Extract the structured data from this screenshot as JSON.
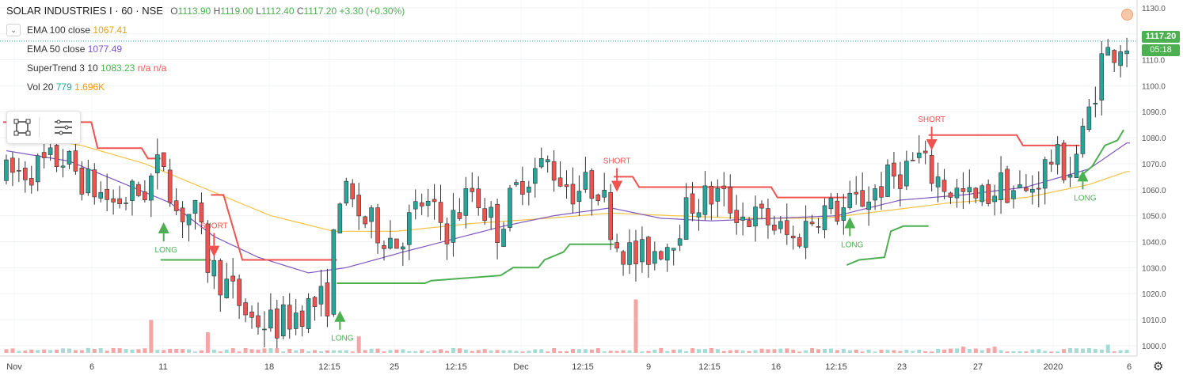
{
  "header": {
    "symbol": "SOLAR INDUSTRIES I · 60 · NSE",
    "open_label": "O",
    "open": "1113.90",
    "high_label": "H",
    "high": "1119.00",
    "low_label": "L",
    "low": "1112.40",
    "close_label": "C",
    "close": "1117.20",
    "change": "+3.30 (+0.30%)"
  },
  "indicators": [
    {
      "name": "EMA 100 close",
      "value": "1067.41",
      "value2": "",
      "value3": ""
    },
    {
      "name": "EMA 50 close",
      "value": "1077.49",
      "value2": "",
      "value3": ""
    },
    {
      "name": "SuperTrend 3 10",
      "value": "1083.23",
      "value2": "n/a",
      "value3": "n/a"
    },
    {
      "name": "Vol 20",
      "value": "779",
      "value2": "1.696K",
      "value3": ""
    }
  ],
  "price_tags": {
    "last_price": "1117.20",
    "countdown": "05:18"
  },
  "colors": {
    "up": "#26a69a",
    "down": "#ef5350",
    "ohlc_text": "#4caf50",
    "ema100": "#f5c342",
    "ema50": "#7e57c2",
    "supertrend_up": "#4caf50",
    "supertrend_down": "#ef5350",
    "vol_value": "#26a69a",
    "vol_ma": "#ff9800",
    "vol_up": "#a5dcd6",
    "vol_down": "#f4a6a5"
  },
  "icons": {
    "collapse": "chevron-down-icon",
    "toolbar_1": "crop-square-icon",
    "toolbar_2": "menu-lines-icon",
    "alert": "alert-dot-icon",
    "settings": "gear-icon"
  },
  "chart_data": {
    "type": "candlestick",
    "ylim": [
      996,
      1133
    ],
    "yticks": [
      1000,
      1010,
      1020,
      1030,
      1040,
      1050,
      1060,
      1070,
      1080,
      1090,
      1100,
      1110,
      1120,
      1130
    ],
    "x_labels": [
      "Nov",
      "6",
      "11",
      "18",
      "12:15",
      "25",
      "12:15",
      "Dec",
      "12:15",
      "9",
      "12:15",
      "16",
      "12:15",
      "23",
      "27",
      "2020",
      "6"
    ],
    "signals": [
      {
        "text": "LONG",
        "type": "buy",
        "bar": 25,
        "price": 1045
      },
      {
        "text": "SHORT",
        "type": "sell",
        "bar": 33,
        "price": 1036
      },
      {
        "text": "LONG",
        "type": "buy",
        "bar": 53,
        "price": 1011
      },
      {
        "text": "SHORT",
        "type": "sell",
        "bar": 97,
        "price": 1061
      },
      {
        "text": "LONG",
        "type": "buy",
        "bar": 134,
        "price": 1047
      },
      {
        "text": "SHORT",
        "type": "sell",
        "bar": 147,
        "price": 1077
      },
      {
        "text": "LONG",
        "type": "buy",
        "bar": 171,
        "price": 1065
      }
    ],
    "candle_keyframes": [
      [
        0,
        1065
      ],
      [
        5,
        1068
      ],
      [
        10,
        1072
      ],
      [
        14,
        1062
      ],
      [
        18,
        1055
      ],
      [
        23,
        1060
      ],
      [
        26,
        1072
      ],
      [
        28,
        1052
      ],
      [
        31,
        1050
      ],
      [
        33,
        1032
      ],
      [
        36,
        1023
      ],
      [
        40,
        1010
      ],
      [
        44,
        1008
      ],
      [
        48,
        1014
      ],
      [
        52,
        1018
      ],
      [
        54,
        1060
      ],
      [
        58,
        1048
      ],
      [
        63,
        1040
      ],
      [
        67,
        1055
      ],
      [
        71,
        1045
      ],
      [
        75,
        1060
      ],
      [
        79,
        1045
      ],
      [
        83,
        1065
      ],
      [
        87,
        1070
      ],
      [
        91,
        1060
      ],
      [
        95,
        1062
      ],
      [
        98,
        1040
      ],
      [
        101,
        1033
      ],
      [
        106,
        1040
      ],
      [
        110,
        1055
      ],
      [
        114,
        1058
      ],
      [
        118,
        1050
      ],
      [
        122,
        1048
      ],
      [
        126,
        1040
      ],
      [
        130,
        1052
      ],
      [
        134,
        1052
      ],
      [
        138,
        1058
      ],
      [
        142,
        1065
      ],
      [
        146,
        1072
      ],
      [
        147,
        1068
      ],
      [
        151,
        1060
      ],
      [
        155,
        1055
      ],
      [
        159,
        1062
      ],
      [
        163,
        1058
      ],
      [
        167,
        1072
      ],
      [
        170,
        1068
      ],
      [
        172,
        1080
      ],
      [
        175,
        1110
      ],
      [
        178,
        1117
      ]
    ],
    "ema50_keyframes": [
      [
        0,
        1075
      ],
      [
        10,
        1071
      ],
      [
        18,
        1063
      ],
      [
        26,
        1055
      ],
      [
        33,
        1042
      ],
      [
        40,
        1034
      ],
      [
        48,
        1028
      ],
      [
        54,
        1030
      ],
      [
        63,
        1036
      ],
      [
        71,
        1041
      ],
      [
        79,
        1046
      ],
      [
        87,
        1050
      ],
      [
        96,
        1053
      ],
      [
        104,
        1049
      ],
      [
        112,
        1048
      ],
      [
        122,
        1049
      ],
      [
        132,
        1050
      ],
      [
        142,
        1056
      ],
      [
        152,
        1058
      ],
      [
        162,
        1061
      ],
      [
        172,
        1068
      ],
      [
        178,
        1078
      ]
    ],
    "ema100_keyframes": [
      [
        0,
        1082
      ],
      [
        12,
        1077
      ],
      [
        22,
        1070
      ],
      [
        32,
        1060
      ],
      [
        42,
        1050
      ],
      [
        52,
        1044
      ],
      [
        62,
        1044
      ],
      [
        74,
        1047
      ],
      [
        86,
        1049
      ],
      [
        96,
        1051
      ],
      [
        106,
        1050
      ],
      [
        118,
        1049
      ],
      [
        130,
        1049
      ],
      [
        140,
        1052
      ],
      [
        150,
        1055
      ],
      [
        162,
        1057
      ],
      [
        172,
        1062
      ],
      [
        178,
        1067
      ]
    ],
    "supertrend_segments": [
      {
        "dir": "down",
        "points": [
          [
            0,
            1086
          ],
          [
            14,
            1086
          ],
          [
            15,
            1076
          ],
          [
            22,
            1076
          ],
          [
            23,
            1072
          ],
          [
            25,
            1072
          ]
        ]
      },
      {
        "dir": "up",
        "points": [
          [
            25,
            1033
          ],
          [
            33,
            1033
          ]
        ]
      },
      {
        "dir": "down",
        "points": [
          [
            33,
            1058
          ],
          [
            35,
            1058
          ],
          [
            38,
            1033
          ],
          [
            53,
            1033
          ]
        ]
      },
      {
        "dir": "up",
        "points": [
          [
            53,
            1024
          ],
          [
            67,
            1024
          ],
          [
            68,
            1025
          ],
          [
            79,
            1027
          ],
          [
            81,
            1030
          ],
          [
            85,
            1030
          ],
          [
            86,
            1033
          ],
          [
            89,
            1036
          ],
          [
            90,
            1039
          ],
          [
            97,
            1039
          ]
        ]
      },
      {
        "dir": "down",
        "points": [
          [
            97,
            1065
          ],
          [
            100,
            1065
          ],
          [
            101,
            1061
          ],
          [
            122,
            1061
          ],
          [
            123,
            1057
          ],
          [
            134,
            1057
          ]
        ]
      },
      {
        "dir": "up",
        "points": [
          [
            134,
            1031
          ],
          [
            136,
            1033
          ],
          [
            140,
            1034
          ],
          [
            141,
            1044
          ],
          [
            143,
            1046
          ],
          [
            147,
            1046
          ]
        ]
      },
      {
        "dir": "down",
        "points": [
          [
            147,
            1081
          ],
          [
            161,
            1081
          ],
          [
            162,
            1077
          ],
          [
            171,
            1077
          ]
        ]
      },
      {
        "dir": "up",
        "points": [
          [
            171,
            1065
          ],
          [
            173,
            1069
          ],
          [
            175,
            1077
          ],
          [
            177,
            1079
          ],
          [
            178,
            1083
          ]
        ]
      }
    ],
    "volume_spikes": [
      [
        23,
        8,
        "down"
      ],
      [
        32,
        5,
        "down"
      ],
      [
        56,
        4,
        "down"
      ],
      [
        100,
        13,
        "down"
      ],
      [
        152,
        1.5,
        "down"
      ],
      [
        157,
        1.5,
        "down"
      ],
      [
        175,
        2,
        "up"
      ]
    ]
  }
}
